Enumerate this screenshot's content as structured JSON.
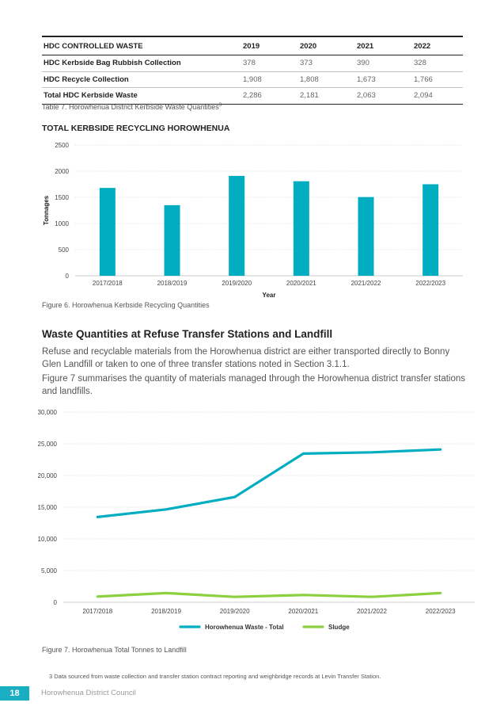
{
  "table": {
    "headers": [
      "HDC CONTROLLED WASTE",
      "2019",
      "2020",
      "2021",
      "2022"
    ],
    "rows": [
      {
        "label": "HDC Kerbside Bag Rubbish Collection",
        "values": [
          "378",
          "373",
          "390",
          "328"
        ]
      },
      {
        "label": "HDC Recycle Collection",
        "values": [
          "1,908",
          "1,808",
          "1,673",
          "1,766"
        ]
      },
      {
        "label": "Total HDC Kerbside Waste",
        "values": [
          "2,286",
          "2,181",
          "2,063",
          "2,094"
        ]
      }
    ],
    "caption": "Table 7. Horowhenua District Kerbside Waste Quantities",
    "caption_sup": "3"
  },
  "chart_data": [
    {
      "type": "bar",
      "title": "TOTAL KERBSIDE RECYCLING HOROWHENUA",
      "xlabel": "Year",
      "ylabel": "Tonnages",
      "categories": [
        "2017/2018",
        "2018/2019",
        "2019/2020",
        "2020/2021",
        "2021/2022",
        "2022/2023"
      ],
      "values": [
        1680,
        1350,
        1910,
        1808,
        1505,
        1750
      ],
      "ylim": [
        0,
        2500
      ],
      "yticks": [
        "0",
        "500",
        "1000",
        "1500",
        "2000",
        "2500"
      ],
      "grid": true,
      "color": "#00adc1"
    },
    {
      "type": "line",
      "x": [
        "2017/2018",
        "2018/2019",
        "2019/2020",
        "2020/2021",
        "2021/2022",
        "2022/2023"
      ],
      "series": [
        {
          "name": "Horowhenua Waste - Total",
          "values": [
            13450,
            14650,
            16600,
            23450,
            23650,
            24100
          ],
          "color": "#00adc1"
        },
        {
          "name": "Sludge",
          "values": [
            900,
            1450,
            850,
            1150,
            850,
            1450
          ],
          "color": "#8cd03f"
        }
      ],
      "ylim": [
        0,
        30000
      ],
      "yticks": [
        "0",
        "5,000",
        "10,000",
        "15,000",
        "20,000",
        "25,000",
        "30,000"
      ],
      "grid": true,
      "legend": "bottom"
    }
  ],
  "fig6_caption": "Figure 6. Horowhenua Kerbside Recycling Quantities",
  "section": {
    "heading": "Waste Quantities at Refuse Transfer Stations and Landfill",
    "para1": "Refuse and recyclable materials from the Horowhenua district are either transported directly to Bonny Glen Landfill or taken to one of three transfer stations noted in Section 3.1.1.",
    "para2": "Figure 7 summarises the quantity of materials managed through the Horowhenua district transfer stations and landfills."
  },
  "fig7_caption": "Figure 7. Horowhenua Total Tonnes to Landfill",
  "footnote": "3  Data sourced from waste collection and transfer station contract reporting and weighbridge records at Levin Transfer Station.",
  "footer": {
    "page_number": "18",
    "org": "Horowhenua District Council"
  }
}
